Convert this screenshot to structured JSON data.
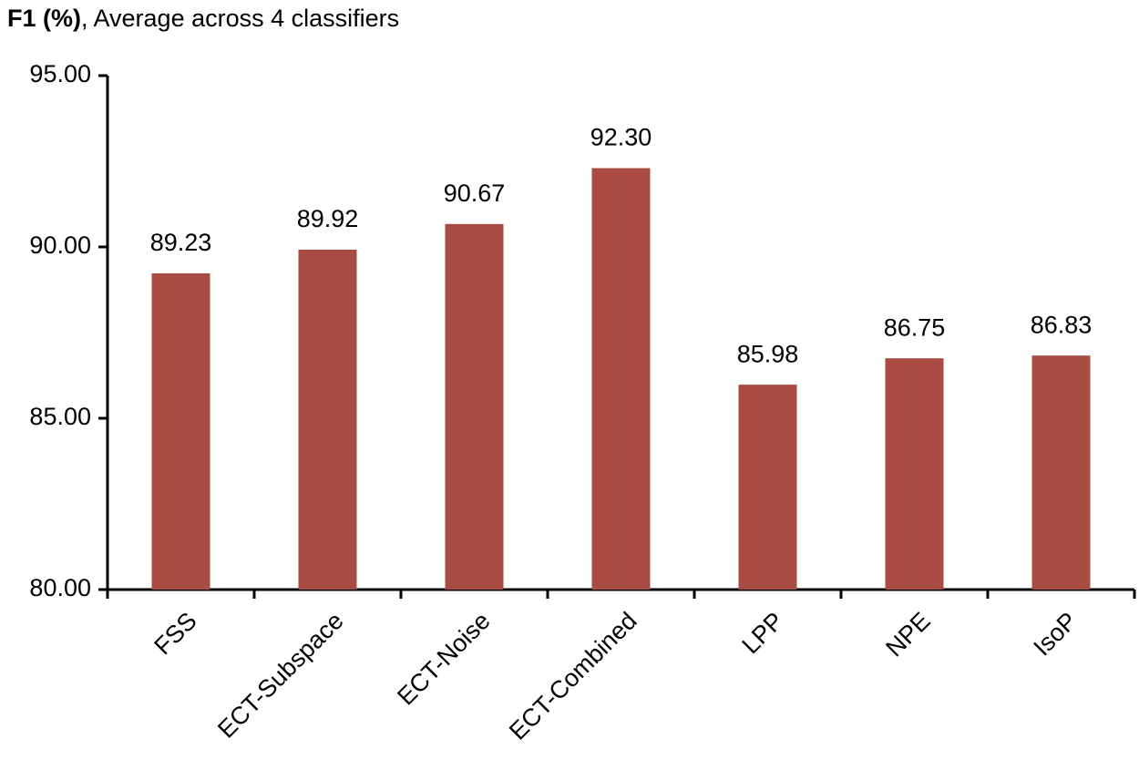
{
  "chart_data": {
    "type": "bar",
    "title": [
      "F1 (%)",
      ", Average across 4 classifiers"
    ],
    "categories": [
      "FSS",
      "ECT-Subspace",
      "ECT-Noise",
      "ECT-Combined",
      "LPP",
      "NPE",
      "IsoP"
    ],
    "values": [
      89.23,
      89.92,
      90.67,
      92.3,
      85.98,
      86.75,
      86.83
    ],
    "value_labels": [
      "89.23",
      "89.92",
      "90.67",
      "92.30",
      "85.98",
      "86.75",
      "86.83"
    ],
    "color": "#a84c44",
    "ylim": [
      80,
      95
    ],
    "yticks": [
      {
        "value": 80,
        "label": "80.00"
      },
      {
        "value": 85,
        "label": "85.00"
      },
      {
        "value": 90,
        "label": "90.00"
      },
      {
        "value": 95,
        "label": "95.00"
      }
    ],
    "grid": false
  }
}
